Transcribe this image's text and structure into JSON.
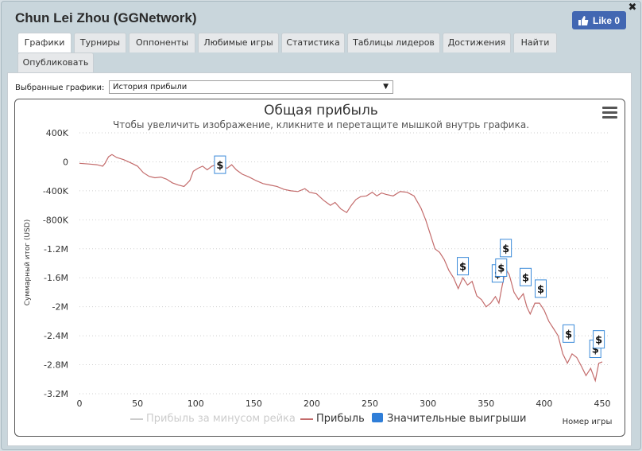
{
  "window": {
    "title": "Chun Lei Zhou (GGNetwork)",
    "close_label": "✖",
    "like_label": "Like 0"
  },
  "tabs": [
    {
      "label": "Графики",
      "active": true
    },
    {
      "label": "Турниры",
      "active": false
    },
    {
      "label": "Оппоненты",
      "active": false
    },
    {
      "label": "Любимые игры",
      "active": false
    },
    {
      "label": "Статистика",
      "active": false
    },
    {
      "label": "Таблицы лидеров",
      "active": false
    },
    {
      "label": "Достижения",
      "active": false
    },
    {
      "label": "Найти",
      "active": false
    },
    {
      "label": "Опубликовать",
      "active": false
    }
  ],
  "selector": {
    "label": "Выбранные графики:",
    "value": "История прибыли"
  },
  "colors": {
    "line": "#c36b6b",
    "rake_line": "#cccccc",
    "marker_border": "#3a8ad9",
    "legend_box": "#2f7ed8",
    "grid": "#cfcfcf"
  },
  "chart_data": {
    "type": "line",
    "title": "Общая прибыль",
    "subtitle": "Чтобы увеличить изображение, кликните и перетащите мышкой внутрь графика.",
    "xlabel": "Номер игры",
    "ylabel": "Суммарный итог (USD)",
    "xlim": [
      0,
      450
    ],
    "ylim": [
      -3200000,
      400000
    ],
    "x_ticks": [
      0,
      50,
      100,
      150,
      200,
      250,
      300,
      350,
      400,
      450
    ],
    "y_ticks": [
      400000,
      0,
      -400000,
      -800000,
      -1200000,
      -1600000,
      -2000000,
      -2400000,
      -2800000,
      -3200000
    ],
    "y_tick_labels": [
      "400K",
      "0",
      "-400K",
      "-800K",
      "-1.2M",
      "-1.6M",
      "-2M",
      "-2.4M",
      "-2.8M",
      "-3.2M"
    ],
    "grid": "horizontal-dotted",
    "legend": "bottom-center",
    "legend_items": [
      {
        "name": "Прибыль за минусом рейка",
        "kind": "line-disabled"
      },
      {
        "name": "Прибыль",
        "kind": "line"
      },
      {
        "name": "Значительные выигрыши",
        "kind": "box"
      }
    ],
    "series": [
      {
        "name": "Прибыль",
        "points": [
          [
            0,
            -20000
          ],
          [
            8,
            -30000
          ],
          [
            15,
            -40000
          ],
          [
            20,
            -60000
          ],
          [
            22,
            -20000
          ],
          [
            25,
            70000
          ],
          [
            28,
            100000
          ],
          [
            32,
            60000
          ],
          [
            38,
            30000
          ],
          [
            45,
            -20000
          ],
          [
            50,
            -60000
          ],
          [
            55,
            -150000
          ],
          [
            60,
            -200000
          ],
          [
            65,
            -220000
          ],
          [
            70,
            -210000
          ],
          [
            75,
            -240000
          ],
          [
            80,
            -290000
          ],
          [
            85,
            -320000
          ],
          [
            90,
            -340000
          ],
          [
            95,
            -260000
          ],
          [
            98,
            -130000
          ],
          [
            102,
            -90000
          ],
          [
            106,
            -60000
          ],
          [
            110,
            -110000
          ],
          [
            114,
            -60000
          ],
          [
            118,
            -40000
          ],
          [
            121,
            -10000
          ],
          [
            123,
            -60000
          ],
          [
            127,
            -90000
          ],
          [
            131,
            -40000
          ],
          [
            135,
            -110000
          ],
          [
            140,
            -170000
          ],
          [
            146,
            -210000
          ],
          [
            152,
            -260000
          ],
          [
            158,
            -300000
          ],
          [
            164,
            -320000
          ],
          [
            170,
            -340000
          ],
          [
            176,
            -380000
          ],
          [
            182,
            -400000
          ],
          [
            188,
            -410000
          ],
          [
            194,
            -370000
          ],
          [
            198,
            -420000
          ],
          [
            204,
            -440000
          ],
          [
            210,
            -530000
          ],
          [
            216,
            -600000
          ],
          [
            220,
            -560000
          ],
          [
            225,
            -650000
          ],
          [
            230,
            -700000
          ],
          [
            234,
            -600000
          ],
          [
            238,
            -520000
          ],
          [
            242,
            -480000
          ],
          [
            247,
            -470000
          ],
          [
            252,
            -420000
          ],
          [
            256,
            -470000
          ],
          [
            260,
            -430000
          ],
          [
            264,
            -450000
          ],
          [
            270,
            -470000
          ],
          [
            276,
            -410000
          ],
          [
            282,
            -420000
          ],
          [
            288,
            -470000
          ],
          [
            294,
            -640000
          ],
          [
            298,
            -800000
          ],
          [
            302,
            -1000000
          ],
          [
            306,
            -1200000
          ],
          [
            310,
            -1250000
          ],
          [
            314,
            -1350000
          ],
          [
            318,
            -1500000
          ],
          [
            322,
            -1600000
          ],
          [
            326,
            -1750000
          ],
          [
            330,
            -1600000
          ],
          [
            334,
            -1700000
          ],
          [
            338,
            -1650000
          ],
          [
            342,
            -1850000
          ],
          [
            346,
            -1900000
          ],
          [
            350,
            -2000000
          ],
          [
            354,
            -1950000
          ],
          [
            358,
            -1860000
          ],
          [
            361,
            -1950000
          ],
          [
            364,
            -1700000
          ],
          [
            367,
            -1480000
          ],
          [
            370,
            -1560000
          ],
          [
            374,
            -1800000
          ],
          [
            378,
            -1900000
          ],
          [
            382,
            -1820000
          ],
          [
            385,
            -2000000
          ],
          [
            388,
            -2100000
          ],
          [
            392,
            -1950000
          ],
          [
            396,
            -1950000
          ],
          [
            400,
            -2050000
          ],
          [
            404,
            -2200000
          ],
          [
            408,
            -2300000
          ],
          [
            412,
            -2400000
          ],
          [
            416,
            -2650000
          ],
          [
            420,
            -2780000
          ],
          [
            424,
            -2650000
          ],
          [
            428,
            -2700000
          ],
          [
            432,
            -2820000
          ],
          [
            436,
            -2950000
          ],
          [
            440,
            -2850000
          ],
          [
            444,
            -3020000
          ],
          [
            447,
            -2780000
          ],
          [
            450,
            -2760000
          ]
        ]
      }
    ],
    "big_wins": [
      {
        "game": 121,
        "value": -40000
      },
      {
        "game": 330,
        "value": -1440000
      },
      {
        "game": 360,
        "value": -1540000
      },
      {
        "game": 363,
        "value": -1460000
      },
      {
        "game": 367,
        "value": -1190000
      },
      {
        "game": 384,
        "value": -1590000
      },
      {
        "game": 397,
        "value": -1750000
      },
      {
        "game": 421,
        "value": -2370000
      },
      {
        "game": 444,
        "value": -2580000
      },
      {
        "game": 447,
        "value": -2450000
      }
    ],
    "big_win_symbol": "$"
  }
}
